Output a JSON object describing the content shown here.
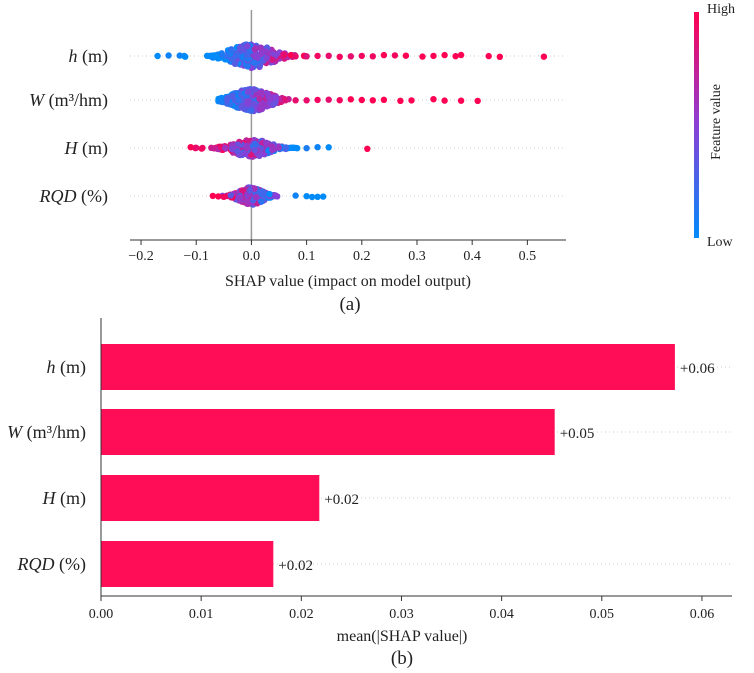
{
  "colors": {
    "high": "#ff0d57",
    "low": "#1e88e5",
    "bar": "#ff0d57",
    "axis": "#333333",
    "grid": "#cccccc",
    "zero_line": "#999999"
  },
  "chart_data": [
    {
      "type": "scatter",
      "subtype": "shap-beeswarm",
      "panel_label": "(a)",
      "xlabel": "SHAP value (impact on model output)",
      "xlim": [
        -0.22,
        0.57
      ],
      "xticks": [
        -0.2,
        -0.1,
        0.0,
        0.1,
        0.2,
        0.3,
        0.4,
        0.5
      ],
      "xtick_labels": [
        "−0.2",
        "−0.1",
        "0.0",
        "0.1",
        "0.2",
        "0.3",
        "0.4",
        "0.5"
      ],
      "colorbar": {
        "title": "Feature value",
        "high_label": "High",
        "low_label": "Low"
      },
      "features": [
        {
          "label_main": "h",
          "label_unit": " (m)",
          "min_shap": -0.17,
          "max_shap": 0.53,
          "density_sigma": 0.035,
          "spread": 0.75,
          "outliers": [
            {
              "x": 0.06,
              "v": 0.9
            },
            {
              "x": 0.08,
              "v": 0.9
            },
            {
              "x": 0.1,
              "v": 0.85
            },
            {
              "x": 0.12,
              "v": 0.95
            },
            {
              "x": 0.14,
              "v": 0.9
            },
            {
              "x": 0.16,
              "v": 0.95
            },
            {
              "x": 0.18,
              "v": 0.9
            },
            {
              "x": 0.2,
              "v": 0.95
            },
            {
              "x": 0.22,
              "v": 0.95
            },
            {
              "x": 0.24,
              "v": 1.0
            },
            {
              "x": 0.26,
              "v": 0.95
            },
            {
              "x": 0.28,
              "v": 1.0
            },
            {
              "x": 0.31,
              "v": 1.0
            },
            {
              "x": 0.33,
              "v": 1.0
            },
            {
              "x": 0.35,
              "v": 1.0
            },
            {
              "x": 0.37,
              "v": 1.0
            },
            {
              "x": 0.38,
              "v": 1.0
            },
            {
              "x": 0.43,
              "v": 1.0
            },
            {
              "x": 0.45,
              "v": 1.0
            },
            {
              "x": 0.53,
              "v": 1.0
            },
            {
              "x": -0.17,
              "v": 0.0
            },
            {
              "x": -0.15,
              "v": 0.05
            },
            {
              "x": -0.13,
              "v": 0.05
            },
            {
              "x": -0.12,
              "v": 0.0
            }
          ]
        },
        {
          "label_main": "W",
          "label_unit": " (m³/hm)",
          "min_shap": -0.06,
          "max_shap": 0.41,
          "density_sigma": 0.03,
          "spread": 0.7,
          "outliers": [
            {
              "x": 0.06,
              "v": 0.85
            },
            {
              "x": 0.08,
              "v": 0.9
            },
            {
              "x": 0.1,
              "v": 0.9
            },
            {
              "x": 0.12,
              "v": 0.95
            },
            {
              "x": 0.14,
              "v": 0.9
            },
            {
              "x": 0.16,
              "v": 0.95
            },
            {
              "x": 0.18,
              "v": 1.0
            },
            {
              "x": 0.2,
              "v": 1.0
            },
            {
              "x": 0.22,
              "v": 1.0
            },
            {
              "x": 0.24,
              "v": 1.0
            },
            {
              "x": 0.27,
              "v": 1.0
            },
            {
              "x": 0.29,
              "v": 1.0
            },
            {
              "x": 0.33,
              "v": 1.0
            },
            {
              "x": 0.35,
              "v": 1.0
            },
            {
              "x": 0.38,
              "v": 1.0
            },
            {
              "x": 0.41,
              "v": 1.0
            }
          ]
        },
        {
          "label_main": "H",
          "label_unit": " (m)",
          "min_shap": -0.11,
          "max_shap": 0.21,
          "density_sigma": 0.03,
          "spread": 0.55,
          "outliers": [
            {
              "x": -0.11,
              "v": 1.0
            },
            {
              "x": -0.1,
              "v": 0.9
            },
            {
              "x": -0.09,
              "v": 0.95
            },
            {
              "x": 0.1,
              "v": 0.1
            },
            {
              "x": 0.12,
              "v": 0.05
            },
            {
              "x": 0.14,
              "v": 0.0
            },
            {
              "x": 0.21,
              "v": 1.0
            }
          ]
        },
        {
          "label_main": "RQD",
          "label_unit": " (%)",
          "min_shap": -0.07,
          "max_shap": 0.13,
          "density_sigma": 0.02,
          "spread": 0.55,
          "outliers": [
            {
              "x": -0.07,
              "v": 1.0
            },
            {
              "x": -0.06,
              "v": 1.0
            },
            {
              "x": -0.05,
              "v": 0.95
            },
            {
              "x": 0.08,
              "v": 0.05
            },
            {
              "x": 0.1,
              "v": 0.0
            },
            {
              "x": 0.11,
              "v": 0.0
            },
            {
              "x": 0.12,
              "v": 0.0
            },
            {
              "x": 0.13,
              "v": 0.0
            }
          ]
        }
      ]
    },
    {
      "type": "bar",
      "orientation": "horizontal",
      "panel_label": "(b)",
      "xlabel": "mean(|SHAP value|)",
      "xlim": [
        0.0,
        0.063
      ],
      "xticks": [
        0.0,
        0.01,
        0.02,
        0.03,
        0.04,
        0.05,
        0.06
      ],
      "xtick_labels": [
        "0.00",
        "0.01",
        "0.02",
        "0.03",
        "0.04",
        "0.05",
        "0.06"
      ],
      "categories": [
        {
          "label_main": "h",
          "label_unit": " (m)"
        },
        {
          "label_main": "W",
          "label_unit": " (m³/hm)"
        },
        {
          "label_main": "H",
          "label_unit": " (m)"
        },
        {
          "label_main": "RQD",
          "label_unit": " (%)"
        }
      ],
      "values": [
        0.0573,
        0.0453,
        0.0218,
        0.0172
      ],
      "value_labels": [
        "+0.06",
        "+0.05",
        "+0.02",
        "+0.02"
      ]
    }
  ]
}
